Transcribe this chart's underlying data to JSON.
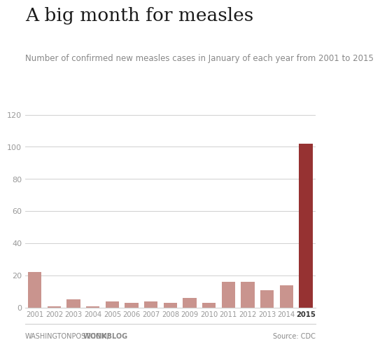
{
  "title": "A big month for measles",
  "subtitle": "Number of confirmed new measles cases in January of each year from 2001 to 2015",
  "years": [
    2001,
    2002,
    2003,
    2004,
    2005,
    2006,
    2007,
    2008,
    2009,
    2010,
    2011,
    2012,
    2013,
    2014,
    2015
  ],
  "values": [
    22,
    1,
    5,
    1,
    4,
    3,
    4,
    3,
    6,
    3,
    16,
    16,
    11,
    14,
    102
  ],
  "bar_colors": [
    "#c9948e",
    "#c9948e",
    "#c9948e",
    "#c9948e",
    "#c9948e",
    "#c9948e",
    "#c9948e",
    "#c9948e",
    "#c9948e",
    "#c9948e",
    "#c9948e",
    "#c9948e",
    "#c9948e",
    "#c9948e",
    "#963232"
  ],
  "ylim": [
    0,
    120
  ],
  "yticks": [
    0,
    20,
    40,
    60,
    80,
    100,
    120
  ],
  "background_color": "#ffffff",
  "grid_color": "#d0d0d0",
  "title_fontsize": 19,
  "subtitle_fontsize": 8.5,
  "tick_color": "#999999",
  "footer_right": "Source: CDC",
  "highlight_year": "2015",
  "footer_left_plain": "WASHINGTONPOST.COM/",
  "footer_left_bold": "WONKBLOG"
}
